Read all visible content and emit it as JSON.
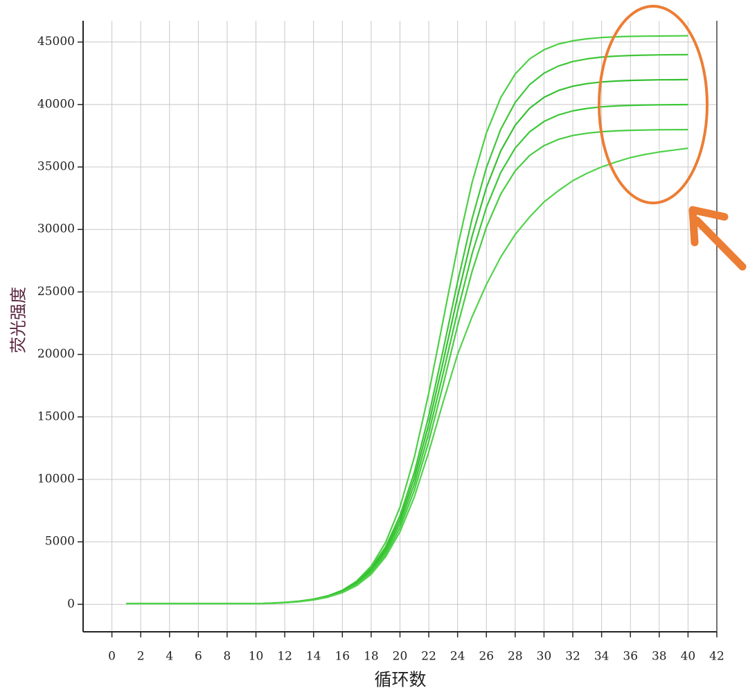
{
  "chart_data": {
    "type": "line",
    "x_label": "循环数",
    "y_label": "荧光强度",
    "x": [
      1,
      2,
      3,
      4,
      5,
      6,
      7,
      8,
      9,
      10,
      11,
      12,
      13,
      14,
      15,
      16,
      17,
      18,
      19,
      20,
      21,
      22,
      23,
      24,
      25,
      26,
      27,
      28,
      29,
      30,
      31,
      32,
      33,
      34,
      35,
      36,
      37,
      38,
      39,
      40
    ],
    "series": [
      {
        "color": "#4ccf45",
        "values": [
          50,
          50,
          50,
          50,
          50,
          50,
          50,
          50,
          50,
          50,
          82,
          139,
          235,
          396,
          665,
          1115,
          1857,
          3054,
          4940,
          7778,
          11790,
          16910,
          22750,
          28600,
          33730,
          37730,
          40560,
          42440,
          43650,
          44380,
          44840,
          45100,
          45260,
          45360,
          45420,
          45450,
          45470,
          45480,
          45490,
          45500
        ]
      },
      {
        "color": "#3fc63a",
        "values": [
          50,
          50,
          50,
          50,
          50,
          50,
          50,
          50,
          50,
          50,
          94,
          154,
          254,
          417,
          682,
          1113,
          1808,
          2904,
          4594,
          7088,
          10578,
          15092,
          20354,
          25806,
          30831,
          34949,
          38029,
          40168,
          41593,
          42508,
          43080,
          43441,
          43657,
          43793,
          43872,
          43925,
          43952,
          43974,
          43982,
          43991
        ]
      },
      {
        "color": "#36bf32",
        "values": [
          50,
          50,
          50,
          50,
          50,
          50,
          50,
          50,
          50,
          50,
          89,
          147,
          243,
          398,
          651,
          1063,
          1726,
          2772,
          4385,
          6766,
          10097,
          14406,
          19429,
          24633,
          29429,
          33361,
          36301,
          38342,
          39703,
          40576,
          41122,
          41467,
          41672,
          41803,
          41878,
          41929,
          41954,
          41975,
          41983,
          41992
        ]
      },
      {
        "color": "#3cc837",
        "values": [
          50,
          50,
          50,
          50,
          50,
          50,
          50,
          50,
          50,
          50,
          85,
          140,
          231,
          379,
          620,
          1012,
          1644,
          2640,
          4176,
          6444,
          9616,
          13720,
          18504,
          23460,
          28028,
          31772,
          34572,
          36516,
          37812,
          38644,
          39164,
          39492,
          39688,
          39812,
          39884,
          39932,
          39956,
          39976,
          39984,
          39992
        ]
      },
      {
        "color": "#48cc42",
        "values": [
          50,
          50,
          50,
          50,
          50,
          50,
          50,
          50,
          50,
          50,
          81,
          133,
          220,
          360,
          589,
          961,
          1562,
          2508,
          3967,
          6122,
          9135,
          13034,
          17579,
          22287,
          26627,
          30183,
          32843,
          34690,
          35921,
          36712,
          37206,
          37517,
          37704,
          37821,
          37890,
          37935,
          37958,
          37977,
          37985,
          37992
        ]
      },
      {
        "color": "#52d24c",
        "values": [
          50,
          50,
          50,
          50,
          50,
          50,
          50,
          50,
          50,
          50,
          80,
          130,
          210,
          350,
          570,
          930,
          1500,
          2400,
          3800,
          5800,
          8600,
          12200,
          16200,
          20000,
          23000,
          25600,
          27800,
          29600,
          31000,
          32200,
          33100,
          33900,
          34500,
          35000,
          35400,
          35750,
          36000,
          36200,
          36350,
          36500
        ]
      }
    ],
    "xlim": [
      -2,
      42
    ],
    "ylim": [
      -2200,
      46700
    ],
    "xticks": [
      0,
      2,
      4,
      6,
      8,
      10,
      12,
      14,
      16,
      18,
      20,
      22,
      24,
      26,
      28,
      30,
      32,
      34,
      36,
      38,
      40,
      42
    ],
    "yticks": [
      0,
      5000,
      10000,
      15000,
      20000,
      25000,
      30000,
      35000,
      40000,
      45000
    ],
    "grid": true
  }
}
